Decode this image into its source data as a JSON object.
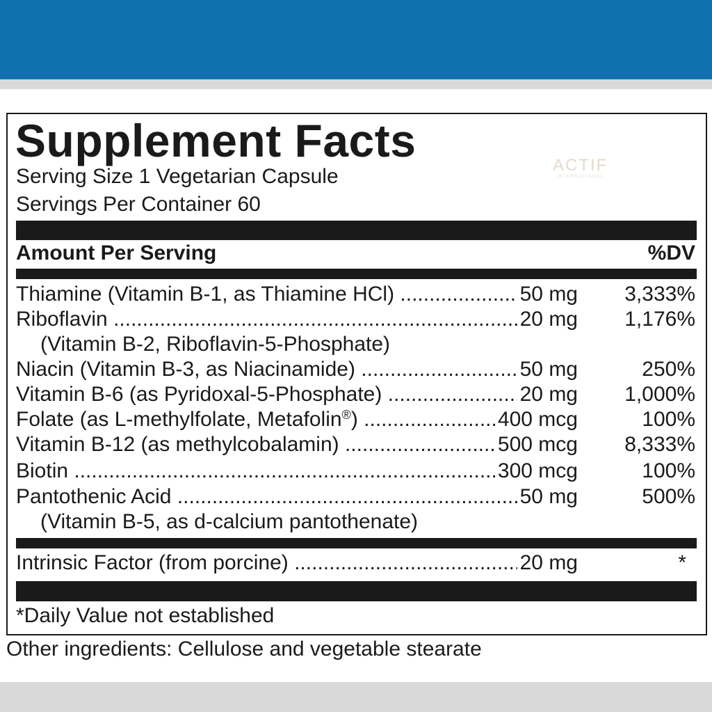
{
  "label": {
    "title": "Supplement Facts",
    "serving_size": "Serving Size 1 Vegetarian Capsule",
    "servings_per_container": "Servings Per Container 60",
    "watermark": "ACTIF",
    "watermark_sub": "INTERNATIONAL",
    "header_amount": "Amount Per Serving",
    "header_dv": "%DV",
    "nutrients": [
      {
        "name": "Thiamine (Vitamin B-1, as Thiamine HCl)",
        "amount": "50 mg",
        "dv": "3,333%"
      },
      {
        "name": "Riboflavin",
        "amount": "20 mg",
        "dv": "1,176%",
        "sub": "(Vitamin B-2, Riboflavin-5-Phosphate)"
      },
      {
        "name": "Niacin (Vitamin B-3, as Niacinamide)",
        "amount": "50 mg",
        "dv": "250%"
      },
      {
        "name": "Vitamin B-6 (as Pyridoxal-5-Phosphate)",
        "amount": "20 mg",
        "dv": "1,000%"
      },
      {
        "name": "Folate (as L-methylfolate, Metafolin",
        "name_sup": "®",
        "name_tail": ")",
        "amount": "400 mcg",
        "dv": "100%"
      },
      {
        "name": "Vitamin B-12 (as methylcobalamin)",
        "amount": "500 mcg",
        "dv": "8,333%"
      },
      {
        "name": "Biotin",
        "amount": "300 mcg",
        "dv": "100%"
      },
      {
        "name": "Pantothenic Acid",
        "amount": "50 mg",
        "dv": "500%",
        "sub": "(Vitamin B-5, as d-calcium pantothenate)"
      }
    ],
    "intrinsic": {
      "name": "Intrinsic Factor (from porcine)",
      "amount": "20 mg",
      "dv": "*"
    },
    "footnote": "*Daily Value not established",
    "other_ingredients": "Other ingredients: Cellulose and vegetable stearate"
  },
  "colors": {
    "brand_blue": "#1170ae",
    "band_gray": "#d9d9d9",
    "ink": "#1a1a1a"
  }
}
